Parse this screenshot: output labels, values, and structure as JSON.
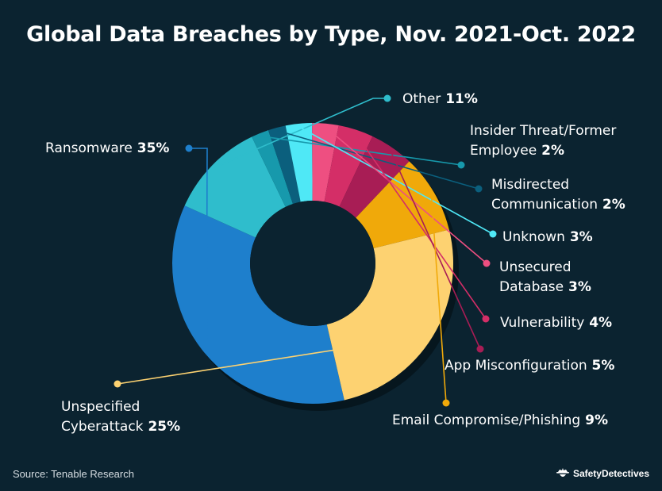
{
  "chart_data": {
    "type": "pie",
    "title": "Global Data Breaches by Type, Nov. 2021-Oct. 2022",
    "slices": [
      {
        "name": "Ransomware",
        "label": [
          "Ransomware"
        ],
        "pct_text": "35%",
        "value": 35,
        "color": "#1e7fcc"
      },
      {
        "name": "Other",
        "label": [
          "Other"
        ],
        "pct_text": "11%",
        "value": 11,
        "color": "#2fbdcc"
      },
      {
        "name": "Insider Threat/Former Employee",
        "label": [
          "Insider Threat/Former",
          "Employee"
        ],
        "pct_text": "2%",
        "value": 2,
        "color": "#1799ac"
      },
      {
        "name": "Misdirected Communication",
        "label": [
          "Misdirected",
          "Communication"
        ],
        "pct_text": "2%",
        "value": 2,
        "color": "#0b5f7d"
      },
      {
        "name": "Unknown",
        "label": [
          "Unknown"
        ],
        "pct_text": "3%",
        "value": 3,
        "color": "#4fe8f6"
      },
      {
        "name": "Unsecured Database",
        "label": [
          "Unsecured",
          "Database"
        ],
        "pct_text": "3%",
        "value": 3,
        "color": "#ee4f81"
      },
      {
        "name": "Vulnerability",
        "label": [
          "Vulnerability"
        ],
        "pct_text": "4%",
        "value": 4,
        "color": "#d42e67"
      },
      {
        "name": "App Misconfiguration",
        "label": [
          "App Misconfiguration"
        ],
        "pct_text": "5%",
        "value": 5,
        "color": "#a81d55"
      },
      {
        "name": "Email Compromise/Phishing",
        "label": [
          "Email Compromise/Phishing"
        ],
        "pct_text": "9%",
        "value": 9,
        "color": "#f0a90a"
      },
      {
        "name": "Unspecified Cyberattack",
        "label": [
          "Unspecified",
          "Cyberattack"
        ],
        "pct_text": "25%",
        "value": 25,
        "color": "#fdd271"
      }
    ]
  },
  "footer": {
    "source": "Source: Tenable Research",
    "brand": "SafetyDetectives"
  }
}
